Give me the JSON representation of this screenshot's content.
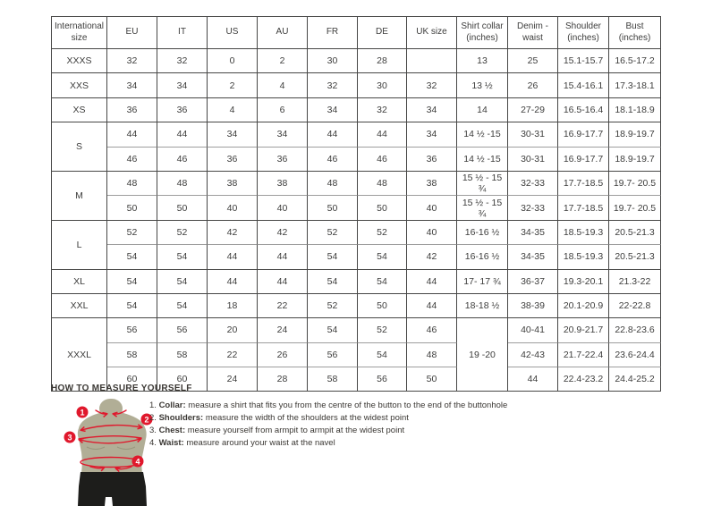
{
  "colors": {
    "accent_red": "#e0182c",
    "torso": "#b1ae96",
    "shorts": "#1d1d1b",
    "border_dark": "#474746",
    "border_light": "#9d9d9d",
    "text": "#3d3d3c"
  },
  "size_table": {
    "headers": [
      "International size",
      "EU",
      "IT",
      "US",
      "AU",
      "FR",
      "DE",
      "UK size",
      "Shirt collar (inches)",
      "Denim - waist",
      "Shoulder (inches)",
      "Bust (inches)"
    ],
    "groups": [
      {
        "size": "XXXS",
        "rows": [
          [
            "32",
            "32",
            "0",
            "2",
            "30",
            "28",
            "",
            "13",
            "25",
            "15.1-15.7",
            "16.5-17.2"
          ]
        ]
      },
      {
        "size": "XXS",
        "rows": [
          [
            "34",
            "34",
            "2",
            "4",
            "32",
            "30",
            "32",
            "13 ½",
            "26",
            "15.4-16.1",
            "17.3-18.1"
          ]
        ]
      },
      {
        "size": "XS",
        "rows": [
          [
            "36",
            "36",
            "4",
            "6",
            "34",
            "32",
            "34",
            "14",
            "27-29",
            "16.5-16.4",
            "18.1-18.9"
          ]
        ]
      },
      {
        "size": "S",
        "rows": [
          [
            "44",
            "44",
            "34",
            "34",
            "44",
            "44",
            "34",
            "14 ½ -15",
            "30-31",
            "16.9-17.7",
            "18.9-19.7"
          ],
          [
            "46",
            "46",
            "36",
            "36",
            "46",
            "46",
            "36",
            "14 ½ -15",
            "30-31",
            "16.9-17.7",
            "18.9-19.7"
          ]
        ]
      },
      {
        "size": "M",
        "rows": [
          [
            "48",
            "48",
            "38",
            "38",
            "48",
            "48",
            "38",
            "15 ½ - 15 ¾",
            "32-33",
            "17.7-18.5",
            "19.7- 20.5"
          ],
          [
            "50",
            "50",
            "40",
            "40",
            "50",
            "50",
            "40",
            "15 ½ - 15 ¾",
            "32-33",
            "17.7-18.5",
            "19.7- 20.5"
          ]
        ]
      },
      {
        "size": "L",
        "rows": [
          [
            "52",
            "52",
            "42",
            "42",
            "52",
            "52",
            "40",
            "16-16 ½",
            "34-35",
            "18.5-19.3",
            "20.5-21.3"
          ],
          [
            "54",
            "54",
            "44",
            "44",
            "54",
            "54",
            "42",
            "16-16 ½",
            "34-35",
            "18.5-19.3",
            "20.5-21.3"
          ]
        ]
      },
      {
        "size": "XL",
        "rows": [
          [
            "54",
            "54",
            "44",
            "44",
            "54",
            "54",
            "44",
            "17- 17 ¾",
            "36-37",
            "19.3-20.1",
            "21.3-22"
          ]
        ]
      },
      {
        "size": "XXL",
        "rows": [
          [
            "54",
            "54",
            "18",
            "22",
            "52",
            "50",
            "44",
            "18-18 ½",
            "38-39",
            "20.1-20.9",
            "22-22.8"
          ]
        ]
      },
      {
        "size": "XXXL",
        "collar": "19 -20",
        "rows": [
          [
            "56",
            "56",
            "20",
            "24",
            "54",
            "52",
            "46",
            "40-41",
            "20.9-21.7",
            "22.8-23.6"
          ],
          [
            "58",
            "58",
            "22",
            "26",
            "56",
            "54",
            "48",
            "42-43",
            "21.7-22.4",
            "23.6-24.4"
          ],
          [
            "60",
            "60",
            "24",
            "28",
            "58",
            "56",
            "50",
            "44",
            "22.4-23.2",
            "24.4-25.2"
          ]
        ]
      }
    ]
  },
  "measure": {
    "heading": "HOW TO MEASURE YOURSELF",
    "items": [
      {
        "num": "1.",
        "bold": "Collar:",
        "rest": " measure a shirt that fits you from the centre of the button to the end of the buttonhole"
      },
      {
        "num": "2.",
        "bold": "Shoulders:",
        "rest": " measure the width of the shoulders at the widest point"
      },
      {
        "num": "3.",
        "bold": "Chest:",
        "rest": " measure yourself from armpit to armpit at the widest point"
      },
      {
        "num": "4.",
        "bold": "Waist:",
        "rest": " measure around your waist at the navel"
      }
    ],
    "markers": [
      "1",
      "2",
      "3",
      "4"
    ]
  }
}
